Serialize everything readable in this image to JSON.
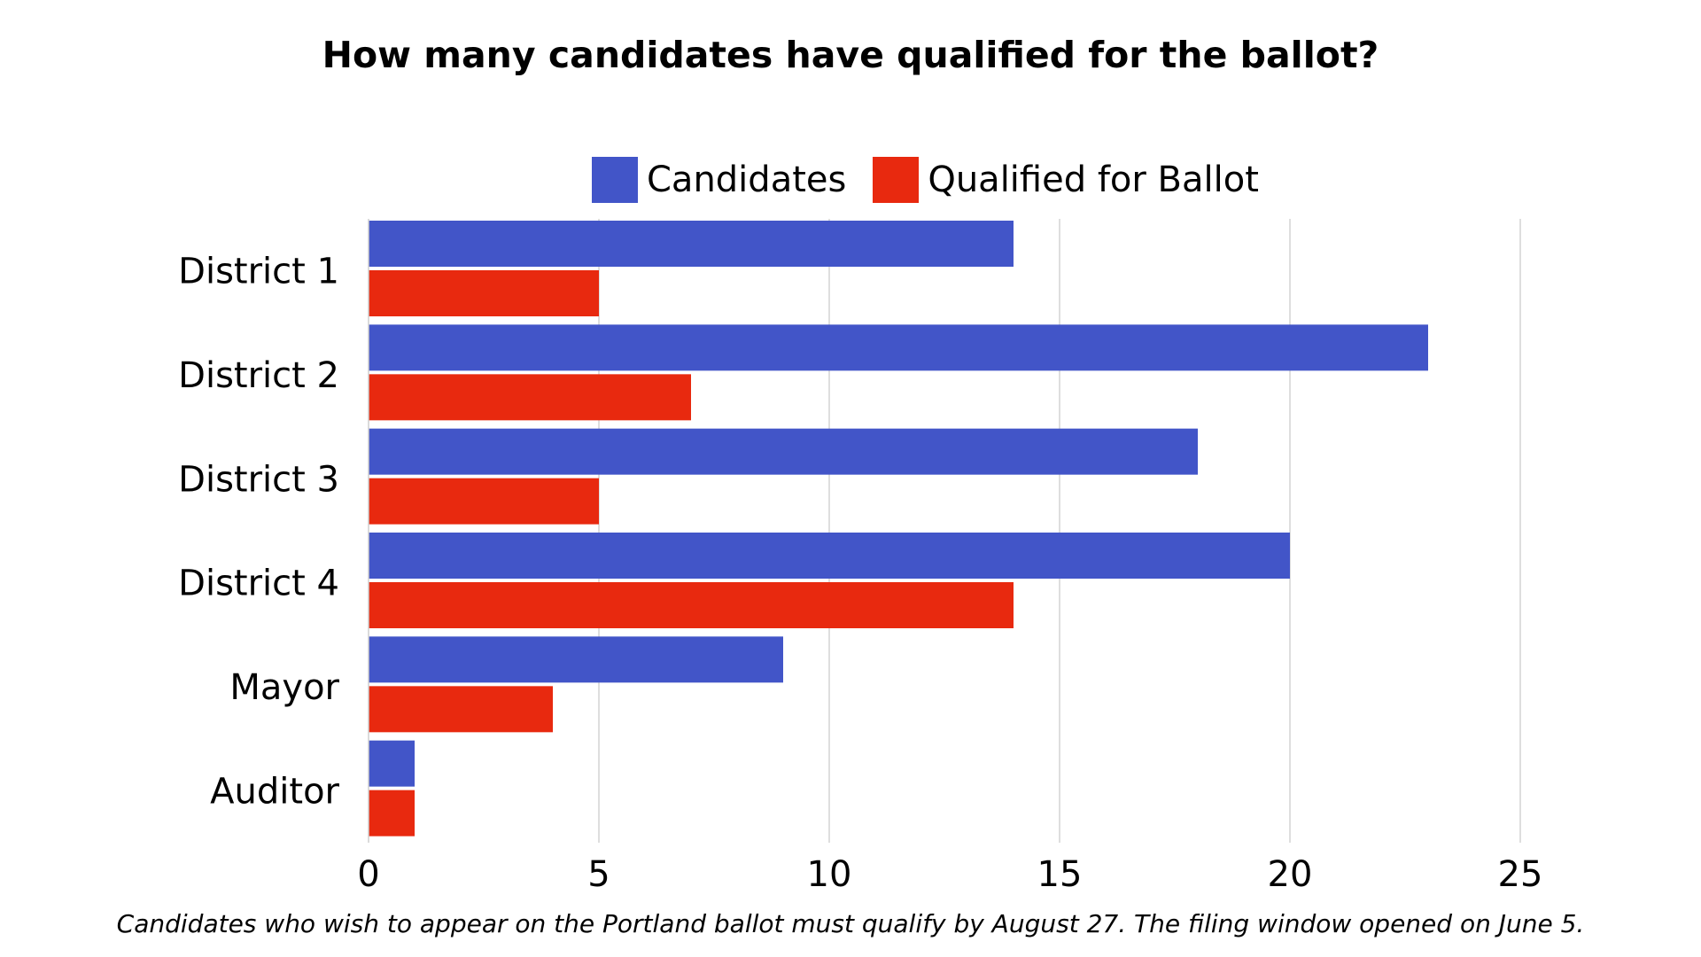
{
  "chart_data": {
    "type": "bar",
    "orientation": "horizontal",
    "title": "How many candidates have qualified for the ballot?",
    "footnote": "Candidates who wish to appear on the Portland ballot must qualify by August 27. The filing window opened on June 5.",
    "categories": [
      "District 1",
      "District 2",
      "District 3",
      "District 4",
      "Mayor",
      "Auditor"
    ],
    "series": [
      {
        "name": "Candidates",
        "color": "#4255c8",
        "values": [
          14,
          23,
          18,
          20,
          9,
          1
        ]
      },
      {
        "name": "Qualified for Ballot",
        "color": "#e8290f",
        "values": [
          5,
          7,
          5,
          14,
          4,
          1
        ]
      }
    ],
    "xlim": [
      0,
      25
    ],
    "xticks": [
      "0",
      "5",
      "10",
      "15",
      "20",
      "25"
    ],
    "grid": true,
    "legend_position": "top"
  }
}
